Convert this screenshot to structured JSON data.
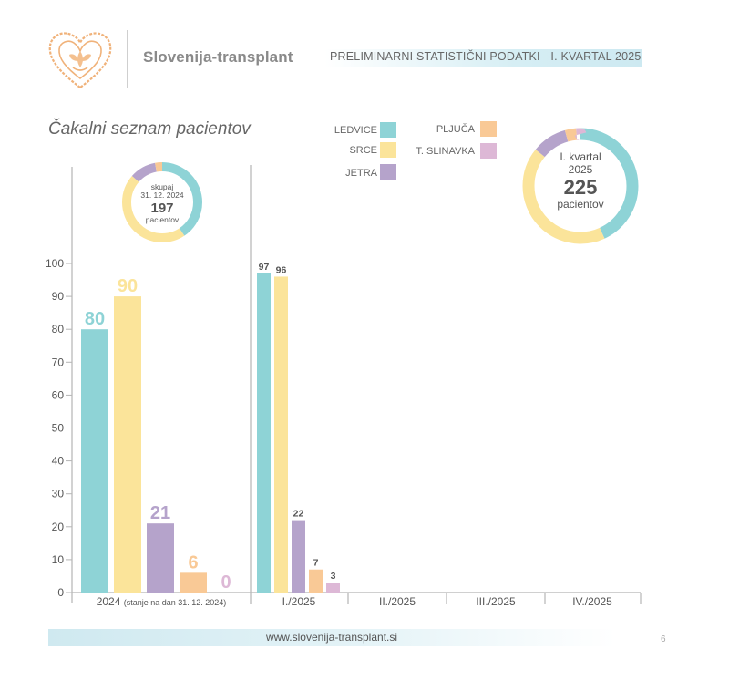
{
  "header": {
    "brand": "Slovenija-transplant",
    "report_title": "PRELIMINARNI STATISTIČNI PODATKI - I. KVARTAL 2025"
  },
  "chart_heading": "Čakalni seznam pacientov",
  "legend": [
    {
      "label": "LEDVICE",
      "color": "#8ed3d6"
    },
    {
      "label": "SRCE",
      "color": "#fbe49a"
    },
    {
      "label": "JETRA",
      "color": "#b5a3cb"
    },
    {
      "label": "PLJUČA",
      "color": "#f9c996"
    },
    {
      "label": "T. SLINAVKA",
      "color": "#ddb8d6"
    }
  ],
  "chart_data": {
    "type": "bar",
    "title": "Čakalni seznam pacientov",
    "ylim": [
      0,
      100
    ],
    "yticks": [
      0,
      10,
      20,
      30,
      40,
      50,
      60,
      70,
      80,
      90,
      100
    ],
    "series_names": [
      "LEDVICE",
      "SRCE",
      "JETRA",
      "PLJUČA",
      "T. SLINAVKA"
    ],
    "groups": [
      {
        "label": "2024",
        "sublabel": "(stanje na dan 31. 12. 2024)",
        "values": [
          80,
          90,
          21,
          6,
          0
        ]
      },
      {
        "label": "I./2025",
        "values": [
          97,
          96,
          22,
          7,
          3
        ]
      },
      {
        "label": "II./2025",
        "values": []
      },
      {
        "label": "III./2025",
        "values": []
      },
      {
        "label": "IV./2025",
        "values": []
      }
    ],
    "grid": false
  },
  "donut_2024": {
    "values": [
      80,
      90,
      21,
      6,
      0
    ],
    "line1": "skupaj",
    "line2": "31. 12. 2024",
    "total": "197",
    "line3": "pacientov"
  },
  "donut_2025": {
    "values": [
      97,
      96,
      22,
      7,
      3
    ],
    "line1": "I. kvartal",
    "line2": "2025",
    "total": "225",
    "line3": "pacientov"
  },
  "footer": {
    "url": "www.slovenija-transplant.si",
    "page_number": "6"
  }
}
